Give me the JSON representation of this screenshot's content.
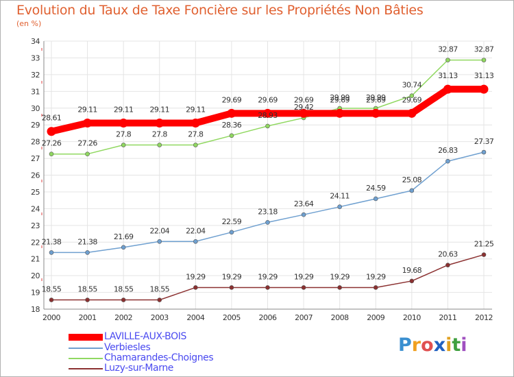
{
  "title": "Evolution du Taux de Taxe Foncière sur les Propriétés Non Bâties",
  "unit_label": "(en %)",
  "logo": {
    "text": "ProXiti",
    "letters": [
      "P",
      "r",
      "o",
      "x",
      "i",
      "t",
      "i"
    ],
    "colors": [
      "#3a8fd0",
      "#f0a020",
      "#e05050",
      "#2060c0",
      "#e0a020",
      "#40a040",
      "#a050c0"
    ]
  },
  "chart_data": {
    "type": "line",
    "x": [
      "2000",
      "2001",
      "2002",
      "2003",
      "2004",
      "2005",
      "2006",
      "2007",
      "2008",
      "2009",
      "2010",
      "2011",
      "2012"
    ],
    "ylim": [
      18,
      34
    ],
    "yticks": [
      18,
      19,
      20,
      21,
      22,
      23,
      24,
      25,
      26,
      27,
      28,
      29,
      30,
      31,
      32,
      33,
      34
    ],
    "grid": true,
    "legend_position": "bottom-left",
    "series": [
      {
        "name": "LAVILLE-AUX-BOIS",
        "color": "#ff0000",
        "values": [
          28.61,
          29.11,
          29.11,
          29.11,
          29.11,
          29.69,
          29.69,
          29.69,
          29.69,
          29.69,
          29.69,
          31.13,
          31.13
        ],
        "labels": [
          "28.61",
          "29.11",
          "29.11",
          "29.11",
          "29.11",
          "29.69",
          "29.69",
          "29.69",
          "29.69",
          "29.69",
          "29.69",
          "31.13",
          "31.13"
        ]
      },
      {
        "name": "Verbiesles",
        "color": "#6fa0d0",
        "values": [
          21.38,
          21.38,
          21.69,
          22.04,
          22.04,
          22.59,
          23.18,
          23.64,
          24.11,
          24.59,
          25.08,
          26.83,
          27.37
        ],
        "labels": [
          "21.38",
          "21.38",
          "21.69",
          "22.04",
          "22.04",
          "22.59",
          "23.18",
          "23.64",
          "24.11",
          "24.59",
          "25.08",
          "26.83",
          "27.37"
        ]
      },
      {
        "name": "Chamarandes-Choignes",
        "color": "#90d860",
        "values": [
          27.26,
          27.26,
          27.8,
          27.8,
          27.8,
          28.36,
          28.93,
          29.42,
          29.99,
          29.99,
          30.74,
          32.87,
          32.87
        ],
        "labels": [
          "27.26",
          "27.26",
          "27.8",
          "27.8",
          "27.8",
          "28.36",
          "28.93",
          "29.42",
          "29.99",
          "29.99",
          "30.74",
          "32.87",
          "32.87"
        ]
      },
      {
        "name": "Luzy-sur-Marne",
        "color": "#8b3030",
        "values": [
          18.55,
          18.55,
          18.55,
          18.55,
          19.29,
          19.29,
          19.29,
          19.29,
          19.29,
          19.29,
          19.68,
          20.63,
          21.25
        ],
        "labels": [
          "18.55",
          "18.55",
          "18.55",
          "18.55",
          "19.29",
          "19.29",
          "19.29",
          "19.29",
          "19.29",
          "19.29",
          "19.68",
          "20.63",
          "21.25"
        ]
      }
    ]
  }
}
